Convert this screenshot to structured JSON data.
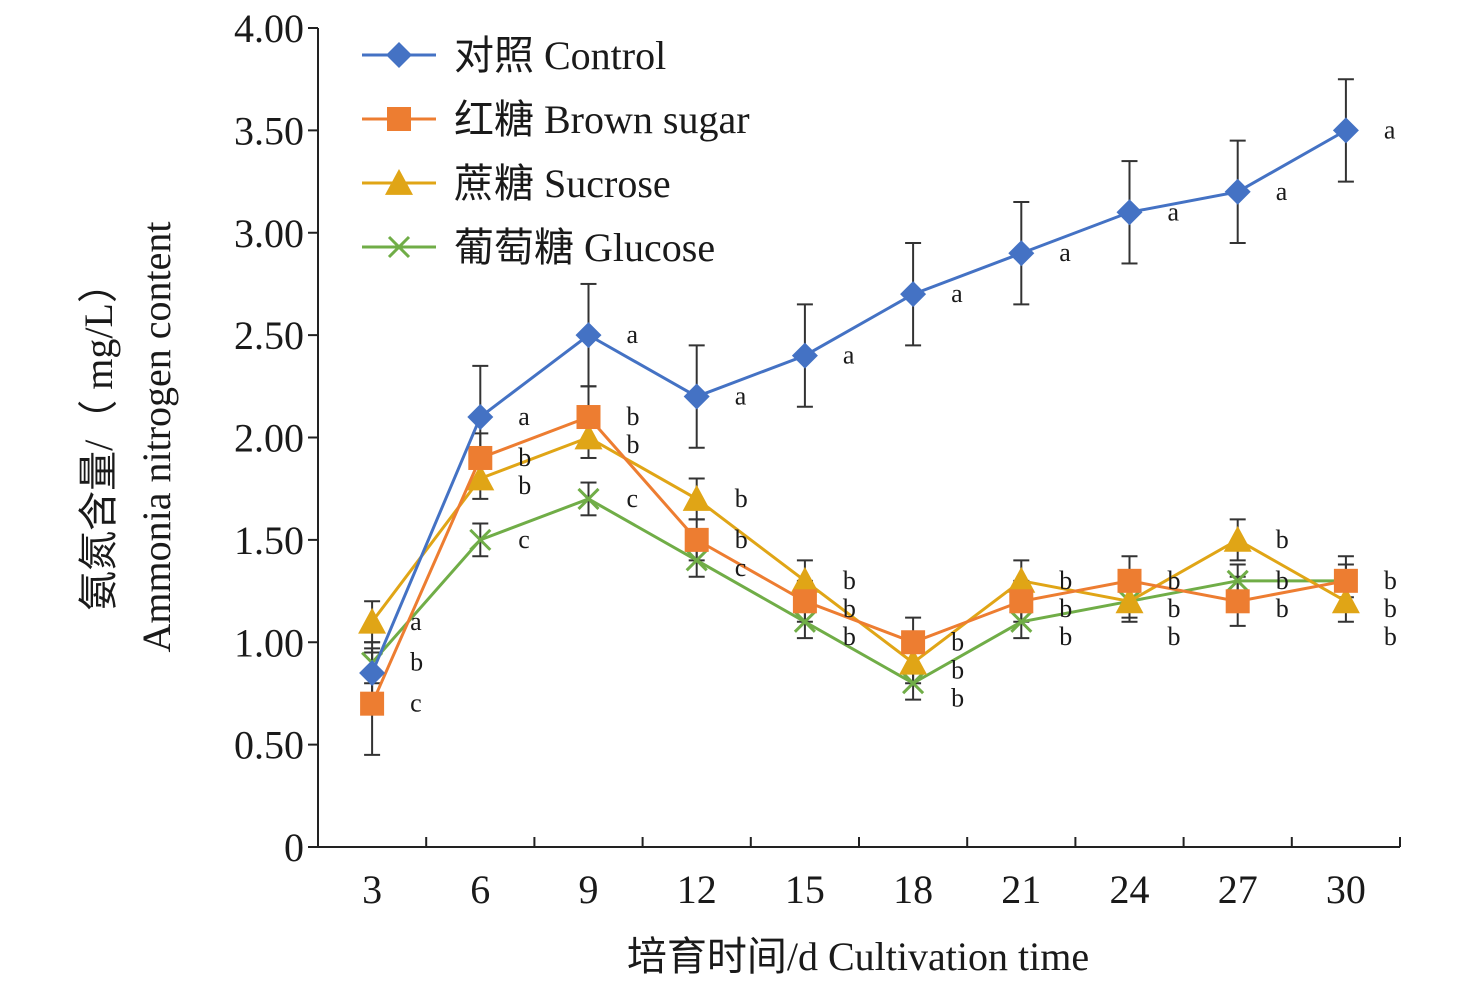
{
  "chart_data": {
    "type": "line",
    "xlabel": "培育时间/d Cultivation time",
    "ylabel_lines": [
      "氨氮含量/（ mg/L）",
      "Ammonia nitrogen content"
    ],
    "x": [
      3,
      6,
      9,
      12,
      15,
      18,
      21,
      24,
      27,
      30
    ],
    "x_tick_labels": [
      "3",
      "6",
      "9",
      "12",
      "15",
      "18",
      "21",
      "24",
      "27",
      "30"
    ],
    "ylim": [
      0,
      4.0
    ],
    "y_ticks": [
      0,
      0.5,
      1.0,
      1.5,
      2.0,
      2.5,
      3.0,
      3.5,
      4.0
    ],
    "y_tick_labels": [
      "0",
      "0.50",
      "1.00",
      "1.50",
      "2.00",
      "2.50",
      "3.00",
      "3.50",
      "4.00"
    ],
    "grid": false,
    "legend_position": "top-left",
    "series": [
      {
        "name": "对照 Control",
        "color": "#4472C4",
        "marker": "diamond",
        "values": [
          0.85,
          2.1,
          2.5,
          2.2,
          2.4,
          2.7,
          2.9,
          3.1,
          3.2,
          3.5
        ],
        "errors": [
          0.12,
          0.25,
          0.25,
          0.25,
          0.25,
          0.25,
          0.25,
          0.25,
          0.25,
          0.25
        ],
        "sig": [
          "",
          "a",
          "a",
          "a",
          "a",
          "a",
          "a",
          "a",
          "a",
          "a"
        ]
      },
      {
        "name": "红糖 Brown sugar",
        "color": "#ED7D31",
        "marker": "square",
        "values": [
          0.7,
          1.9,
          2.1,
          1.5,
          1.2,
          1.0,
          1.2,
          1.3,
          1.2,
          1.3
        ],
        "errors": [
          0.25,
          0.12,
          0.15,
          0.1,
          0.1,
          0.12,
          0.1,
          0.12,
          0.12,
          0.12
        ],
        "sig": [
          "c",
          "b",
          "b",
          "b",
          "b",
          "b",
          "b",
          "b",
          "b",
          "b"
        ]
      },
      {
        "name": "蔗糖 Sucrose",
        "color": "#E0A516",
        "marker": "triangle",
        "values": [
          1.1,
          1.8,
          2.0,
          1.7,
          1.3,
          0.9,
          1.3,
          1.2,
          1.5,
          1.2
        ],
        "errors": [
          0.1,
          0.1,
          0.1,
          0.1,
          0.1,
          0.1,
          0.1,
          0.1,
          0.1,
          0.1
        ],
        "sig": [
          "a",
          "b",
          "b",
          "b",
          "b",
          "b",
          "b",
          "b",
          "b",
          "b"
        ]
      },
      {
        "name": "葡萄糖 Glucose",
        "color": "#70AD47",
        "marker": "x",
        "values": [
          0.9,
          1.5,
          1.7,
          1.4,
          1.1,
          0.8,
          1.1,
          1.2,
          1.3,
          1.3
        ],
        "errors": [
          0.1,
          0.08,
          0.08,
          0.08,
          0.08,
          0.08,
          0.08,
          0.08,
          0.08,
          0.08
        ],
        "sig": [
          "b",
          "c",
          "c",
          "c",
          "b",
          "b",
          "b",
          "b",
          "b",
          "b"
        ]
      }
    ]
  }
}
